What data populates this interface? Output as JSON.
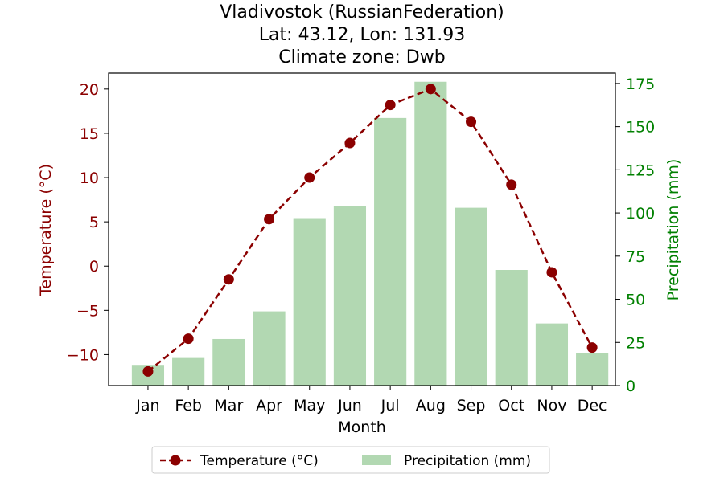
{
  "chart_data": {
    "type": "bar+line",
    "title_lines": [
      "Vladivostok (RussianFederation)",
      "Lat: 43.12, Lon: 131.93",
      "Climate zone: Dwb"
    ],
    "xlabel": "Month",
    "ylabel_left": "Temperature (°C)",
    "ylabel_right": "Precipitation (mm)",
    "categories": [
      "Jan",
      "Feb",
      "Mar",
      "Apr",
      "May",
      "Jun",
      "Jul",
      "Aug",
      "Sep",
      "Oct",
      "Nov",
      "Dec"
    ],
    "temperature": {
      "name": "Temperature (°C)",
      "values": [
        -11.9,
        -8.2,
        -1.5,
        5.3,
        10.0,
        13.9,
        18.2,
        20.0,
        16.3,
        9.2,
        -0.7,
        -9.2
      ],
      "color": "#8b0000",
      "style": "dashed line with circle markers",
      "axis": "left"
    },
    "precipitation": {
      "name": "Precipitation (mm)",
      "values": [
        12,
        16,
        27,
        43,
        97,
        104,
        155,
        176,
        103,
        67,
        36,
        19
      ],
      "color": "#b2d8b2",
      "axis": "right"
    },
    "ylim_left": [
      -13.5,
      21.8
    ],
    "ylim_right": [
      0,
      181
    ],
    "yticks_left": [
      "−10",
      "−5",
      "0",
      "5",
      "10",
      "15",
      "20"
    ],
    "yticks_left_values": [
      -10,
      -5,
      0,
      5,
      10,
      15,
      20
    ],
    "yticks_right": [
      "0",
      "25",
      "50",
      "75",
      "100",
      "125",
      "150",
      "175"
    ],
    "yticks_right_values": [
      0,
      25,
      50,
      75,
      100,
      125,
      150,
      175
    ],
    "left_axis_color": "#8b0000",
    "right_axis_color": "#008000",
    "grid": false,
    "legend_position": "bottom-center"
  }
}
